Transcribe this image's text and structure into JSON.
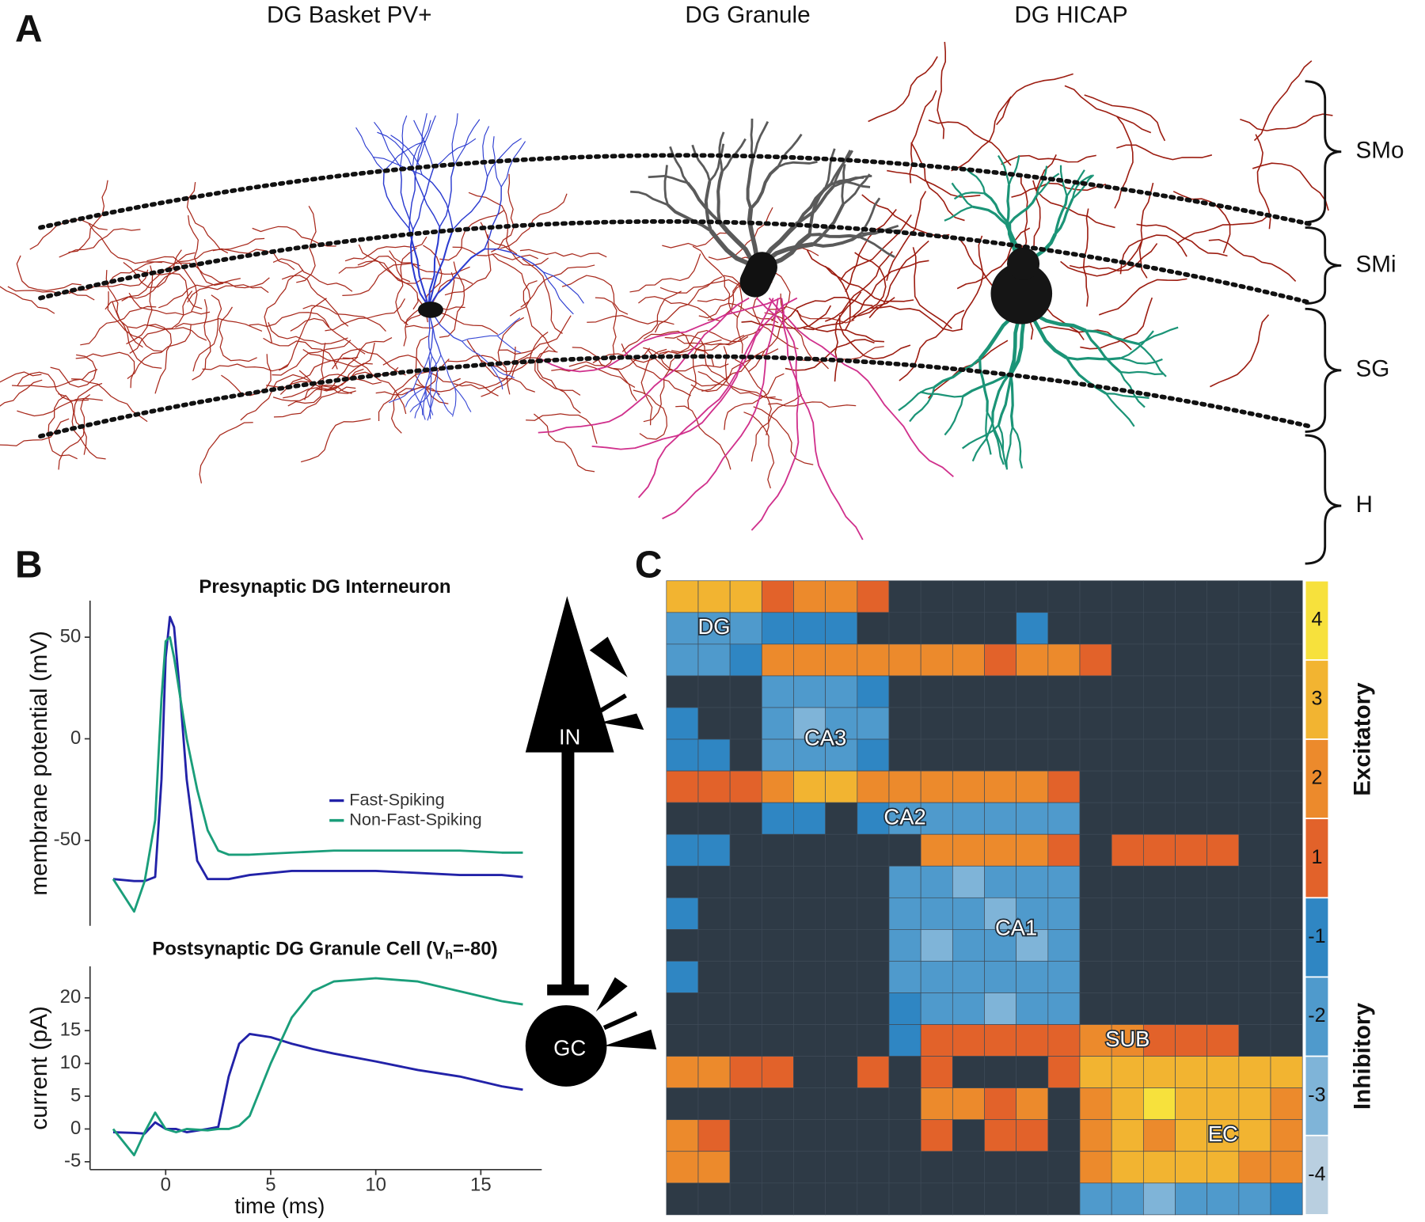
{
  "panel_a": {
    "label": "A",
    "cells": [
      "DG Basket PV+",
      "DG Granule",
      "DG HICAP"
    ],
    "layers": [
      "SMo",
      "SMi",
      "SG",
      "H"
    ]
  },
  "panel_b": {
    "label": "B"
  },
  "panel_c": {
    "label": "C"
  },
  "schematic": {
    "nodes": [
      "IN",
      "GC"
    ]
  },
  "chart_data": [
    {
      "type": "line",
      "title": "Presynaptic DG Interneuron",
      "ylabel": "membrane potential (mV)",
      "x": [
        -2.5,
        -1.5,
        -1,
        -0.5,
        -0.2,
        0,
        0.2,
        0.4,
        0.7,
        1,
        1.5,
        2,
        2.5,
        3,
        4,
        6,
        8,
        10,
        12,
        14,
        16,
        17
      ],
      "series": [
        {
          "name": "Fast-Spiking",
          "color": "#2222a8",
          "values": [
            -69,
            -70,
            -70,
            -68,
            -20,
            40,
            60,
            55,
            20,
            -20,
            -60,
            -69,
            -69,
            -69,
            -67,
            -65,
            -65,
            -65,
            -66,
            -67,
            -67,
            -68
          ]
        },
        {
          "name": "Non-Fast-Spiking",
          "color": "#1a9e7a",
          "values": [
            -69,
            -85,
            -70,
            -40,
            20,
            48,
            50,
            40,
            20,
            0,
            -25,
            -45,
            -55,
            -57,
            -57,
            -56,
            -55,
            -55,
            -55,
            -55,
            -56,
            -56
          ]
        }
      ],
      "xlim": [
        -3.6,
        17.9
      ],
      "ylim": [
        -92,
        68
      ],
      "yticks": [
        -50,
        0,
        50
      ],
      "legend": "right"
    },
    {
      "type": "line",
      "title_parts": [
        "Postsynaptic DG Granule Cell (V",
        "h",
        "=-80)"
      ],
      "ylabel": "current (pA)",
      "xlabel": "time (ms)",
      "x": [
        -2.5,
        -1.5,
        -1,
        -0.5,
        0,
        0.5,
        1,
        2,
        2.5,
        3,
        3.5,
        4,
        5,
        6,
        7,
        8,
        10,
        12,
        14,
        16,
        17
      ],
      "series": [
        {
          "color": "#2222a8",
          "values": [
            -0.5,
            -0.6,
            -0.7,
            1,
            0,
            0,
            -0.5,
            0,
            0.3,
            8,
            13,
            14.5,
            14,
            13,
            12.2,
            11.5,
            10.3,
            9,
            8,
            6.5,
            6
          ]
        },
        {
          "color": "#1a9e7a",
          "values": [
            0,
            -4,
            -0.5,
            2.5,
            0,
            -0.5,
            0,
            -0.2,
            0,
            0,
            0.5,
            2,
            10,
            17,
            21,
            22.5,
            23,
            22.5,
            21,
            19.5,
            19
          ]
        }
      ],
      "xlim": [
        -3.6,
        17.9
      ],
      "ylim": [
        -6.2,
        24.8
      ],
      "xticks": [
        0,
        5,
        10,
        15
      ],
      "yticks": [
        -5,
        0,
        5,
        10,
        15,
        20
      ]
    },
    {
      "type": "heatmap",
      "empty_color": "#2e3a46",
      "z": [
        [
          3,
          3,
          3,
          1,
          2,
          2,
          1,
          0,
          0,
          0,
          0,
          0,
          0,
          0,
          0,
          0,
          0,
          0,
          0,
          0
        ],
        [
          -2,
          -2,
          -2,
          -1,
          -1,
          -1,
          0,
          0,
          0,
          0,
          0,
          -1,
          0,
          0,
          0,
          0,
          0,
          0,
          0,
          0
        ],
        [
          -2,
          -2,
          -1,
          2,
          2,
          2,
          2,
          2,
          2,
          2,
          1,
          2,
          2,
          1,
          0,
          0,
          0,
          0,
          0,
          0
        ],
        [
          0,
          0,
          0,
          -2,
          -2,
          -2,
          -1,
          0,
          0,
          0,
          0,
          0,
          0,
          0,
          0,
          0,
          0,
          0,
          0,
          0
        ],
        [
          -1,
          0,
          0,
          -2,
          -3,
          -2,
          -2,
          0,
          0,
          0,
          0,
          0,
          0,
          0,
          0,
          0,
          0,
          0,
          0,
          0
        ],
        [
          -1,
          -1,
          0,
          -2,
          -2,
          -2,
          -1,
          0,
          0,
          0,
          0,
          0,
          0,
          0,
          0,
          0,
          0,
          0,
          0,
          0
        ],
        [
          1,
          1,
          1,
          2,
          3,
          3,
          2,
          2,
          2,
          2,
          2,
          2,
          1,
          0,
          0,
          0,
          0,
          0,
          0,
          0
        ],
        [
          0,
          0,
          0,
          -1,
          -1,
          0,
          -1,
          -2,
          -2,
          -2,
          -2,
          -2,
          -2,
          0,
          0,
          0,
          0,
          0,
          0,
          0
        ],
        [
          -1,
          -1,
          0,
          0,
          0,
          0,
          0,
          0,
          2,
          2,
          2,
          2,
          1,
          0,
          1,
          1,
          1,
          1,
          0,
          0
        ],
        [
          0,
          0,
          0,
          0,
          0,
          0,
          0,
          -2,
          -2,
          -3,
          -2,
          -2,
          -2,
          0,
          0,
          0,
          0,
          0,
          0,
          0
        ],
        [
          -1,
          0,
          0,
          0,
          0,
          0,
          0,
          -2,
          -2,
          -2,
          -3,
          -2,
          -2,
          0,
          0,
          0,
          0,
          0,
          0,
          0
        ],
        [
          0,
          0,
          0,
          0,
          0,
          0,
          0,
          -2,
          -3,
          -2,
          -2,
          -3,
          -2,
          0,
          0,
          0,
          0,
          0,
          0,
          0
        ],
        [
          -1,
          0,
          0,
          0,
          0,
          0,
          0,
          -2,
          -2,
          -2,
          -2,
          -2,
          -2,
          0,
          0,
          0,
          0,
          0,
          0,
          0
        ],
        [
          0,
          0,
          0,
          0,
          0,
          0,
          0,
          -1,
          -2,
          -2,
          -3,
          -2,
          -2,
          0,
          0,
          0,
          0,
          0,
          0,
          0
        ],
        [
          0,
          0,
          0,
          0,
          0,
          0,
          0,
          -1,
          1,
          1,
          1,
          1,
          1,
          2,
          2,
          1,
          1,
          1,
          0,
          0
        ],
        [
          2,
          2,
          1,
          1,
          0,
          0,
          1,
          0,
          1,
          0,
          0,
          0,
          1,
          3,
          3,
          3,
          3,
          3,
          3,
          3
        ],
        [
          0,
          0,
          0,
          0,
          0,
          0,
          0,
          0,
          2,
          2,
          1,
          2,
          0,
          2,
          3,
          4,
          3,
          3,
          3,
          2
        ],
        [
          2,
          1,
          0,
          0,
          0,
          0,
          0,
          0,
          1,
          0,
          1,
          1,
          0,
          2,
          3,
          2,
          3,
          3,
          3,
          2
        ],
        [
          2,
          2,
          0,
          0,
          0,
          0,
          0,
          0,
          0,
          0,
          0,
          0,
          0,
          2,
          3,
          3,
          3,
          3,
          2,
          2
        ],
        [
          0,
          0,
          0,
          0,
          0,
          0,
          0,
          0,
          0,
          0,
          0,
          0,
          0,
          -2,
          -2,
          -3,
          -2,
          -2,
          -2,
          -1
        ]
      ],
      "regions": [
        {
          "label": "DG",
          "start": 0,
          "end": 3
        },
        {
          "label": "CA3",
          "start": 3,
          "end": 7
        },
        {
          "label": "CA2",
          "start": 7,
          "end": 8
        },
        {
          "label": "CA1",
          "start": 8,
          "end": 14
        },
        {
          "label": "SUB",
          "start": 14,
          "end": 15
        },
        {
          "label": "EC",
          "start": 15,
          "end": 20
        }
      ],
      "colorbar": {
        "ticks": [
          4,
          3,
          2,
          1,
          -1,
          -2,
          -3,
          -4
        ],
        "colors": [
          "#f7e13c",
          "#f2b431",
          "#ec8a2c",
          "#e2622a",
          "#2f86c3",
          "#4f9acc",
          "#7fb4d8",
          "#b9cfe0"
        ],
        "groups": [
          {
            "label": "Excitatory"
          },
          {
            "label": "Inhibitory"
          }
        ]
      }
    }
  ]
}
